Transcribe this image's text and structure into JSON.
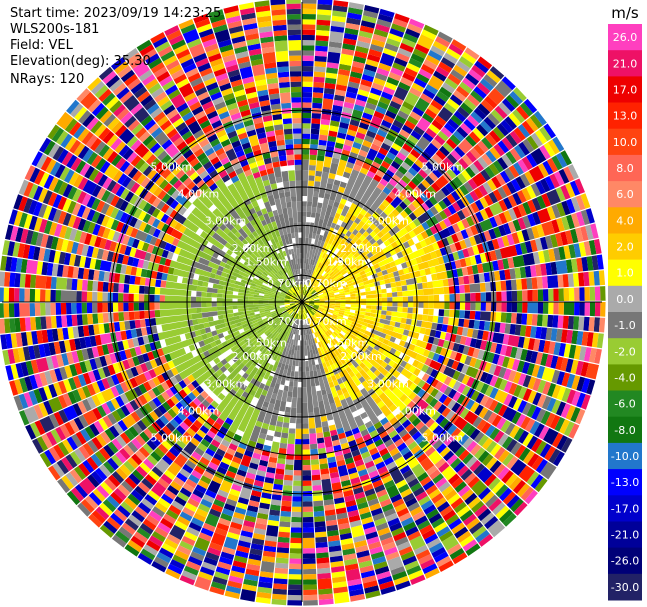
{
  "header": {
    "start_time": "Start time: 2023/09/19 14:23:25",
    "instrument": "WLS200s-181",
    "field": "Field: VEL",
    "elevation": "Elevation(deg): 35.30",
    "nrays": "NRays: 120"
  },
  "chart_data": {
    "type": "heatmap",
    "projection": "polar (PPI scan)",
    "field": "VEL",
    "elevation_deg": 35.3,
    "nrays": 120,
    "range_rings": [
      {
        "label": "0.70km",
        "km": 0.7
      },
      {
        "label": "1.50km",
        "km": 1.5
      },
      {
        "label": "2.00km",
        "km": 2.0
      },
      {
        "label": "3.00km",
        "km": 3.0
      },
      {
        "label": "4.00km",
        "km": 4.0
      },
      {
        "label": "5.00km",
        "km": 5.0
      }
    ],
    "colorbar": {
      "unit": "m/s",
      "ticks": [
        "26.0",
        "21.0",
        "17.0",
        "13.0",
        "10.0",
        "8.0",
        "6.0",
        "4.0",
        "2.0",
        "1.0",
        "0.0",
        "-1.0",
        "-2.0",
        "-4.0",
        "-6.0",
        "-8.0",
        "-10.0",
        "-13.0",
        "-17.0",
        "-21.0",
        "-26.0",
        "-30.0"
      ],
      "colors": [
        "#ff3fbf",
        "#ee1166",
        "#ee0000",
        "#ff2200",
        "#ff4411",
        "#ff6655",
        "#ff8866",
        "#ffaa00",
        "#ffcc00",
        "#ffff00",
        "#aaaaaa",
        "#777777",
        "#99cc33",
        "#669900",
        "#228822",
        "#117711",
        "#2277cc",
        "#0000ff",
        "#0000cc",
        "#000099",
        "#000077",
        "#222266"
      ]
    }
  }
}
